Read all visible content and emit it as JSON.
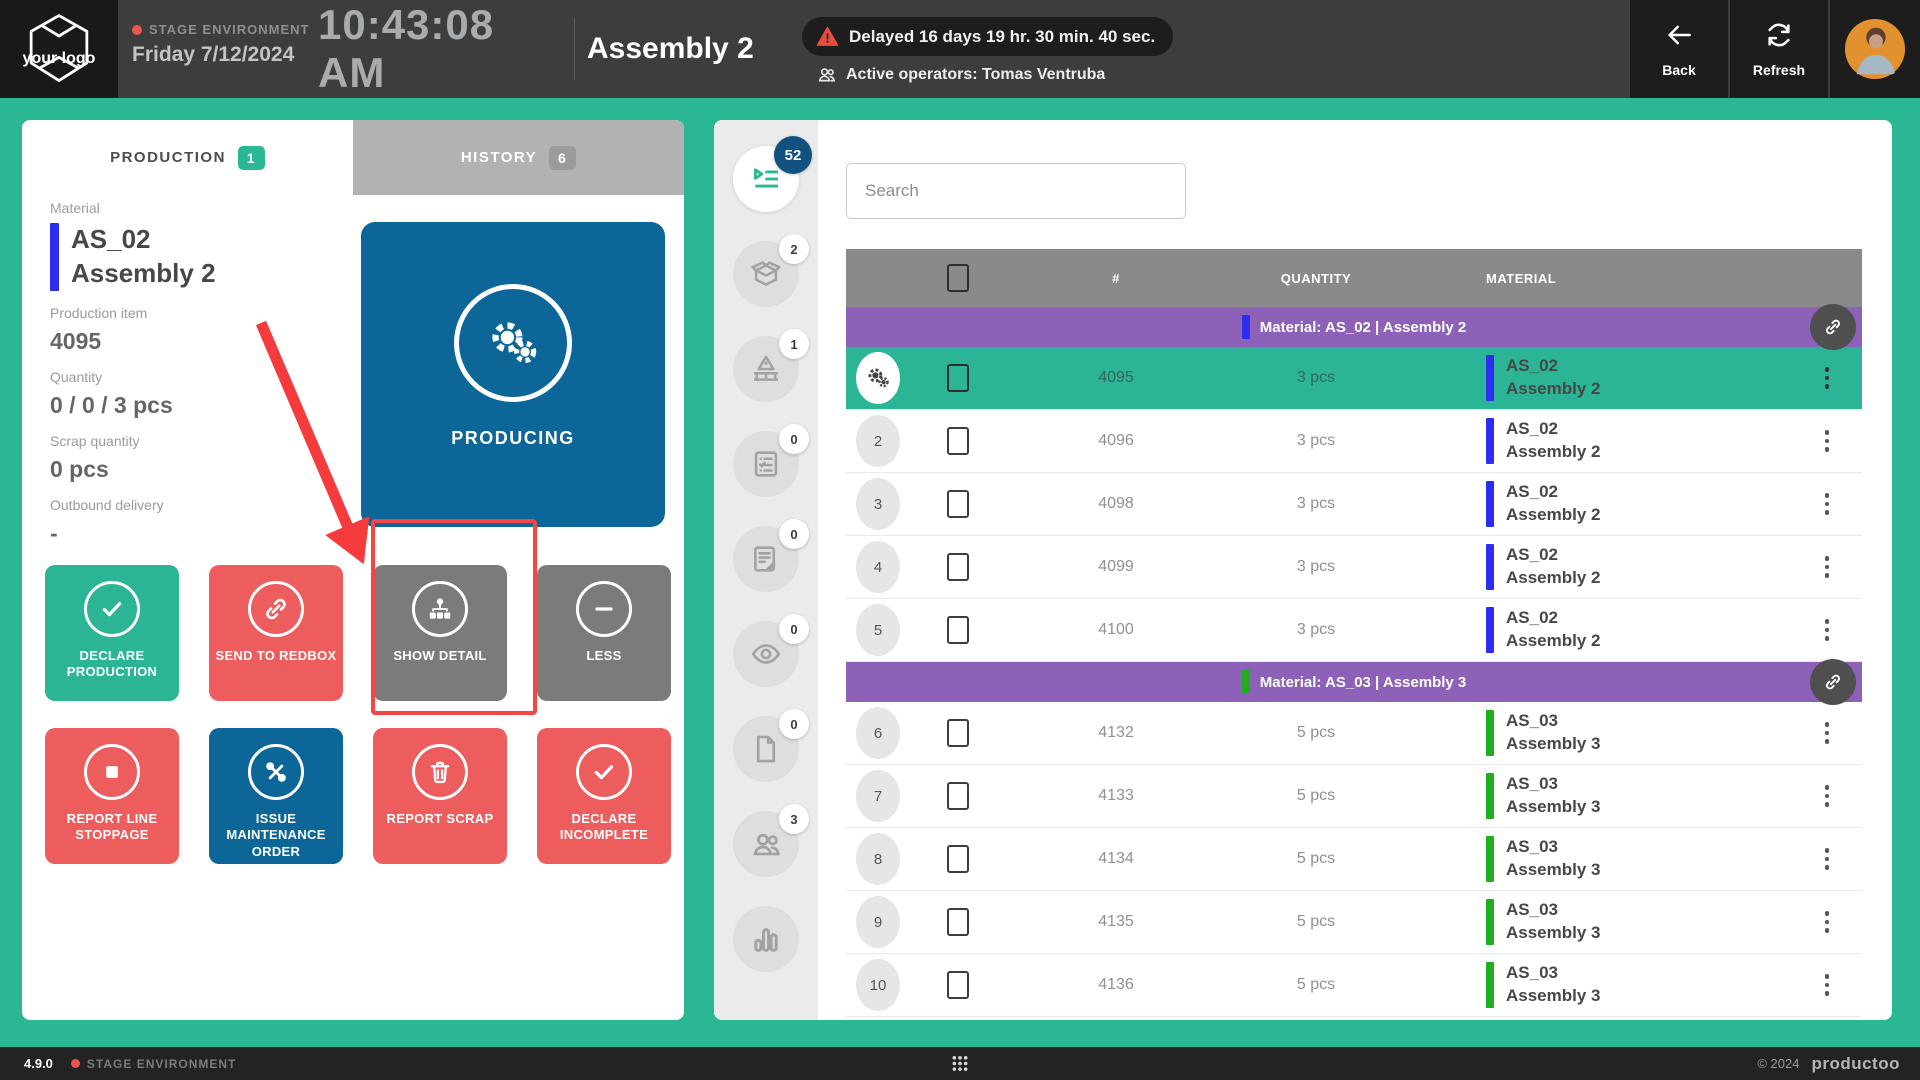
{
  "header": {
    "logo_text": "your logo",
    "environment": "STAGE ENVIRONMENT",
    "date": "Friday 7/12/2024",
    "time": "10:43:08 AM",
    "title": "Assembly 2",
    "delay_alert": "Delayed 16 days 19 hr. 30 min. 40 sec.",
    "operators": "Active operators: Tomas Ventruba",
    "back_label": "Back",
    "refresh_label": "Refresh"
  },
  "production_panel": {
    "tabs": [
      {
        "label": "PRODUCTION",
        "badge": "1",
        "active": true
      },
      {
        "label": "HISTORY",
        "badge": "6",
        "active": false
      }
    ],
    "info": {
      "material_label": "Material",
      "material_code": "AS_02",
      "material_name": "Assembly 2",
      "production_item_label": "Production item",
      "production_item_value": "4095",
      "quantity_label": "Quantity",
      "quantity_value": "0 / 0 / 3 pcs",
      "scrap_label": "Scrap quantity",
      "scrap_value": "0 pcs",
      "outbound_label": "Outbound delivery",
      "outbound_value": "-"
    },
    "status_tile": {
      "label": "PRODUCING",
      "icon": "gears"
    },
    "actions": [
      {
        "name": "declare-production-button",
        "label": "DECLARE PRODUCTION",
        "icon": "check",
        "color": "teal",
        "highlight": false
      },
      {
        "name": "send-to-redbox-button",
        "label": "SEND TO REDBOX",
        "icon": "link",
        "color": "red",
        "highlight": false
      },
      {
        "name": "show-detail-button",
        "label": "SHOW DETAIL",
        "icon": "sitemap",
        "color": "gray",
        "highlight": true
      },
      {
        "name": "less-button",
        "label": "LESS",
        "icon": "minus",
        "color": "gray",
        "highlight": false
      },
      {
        "name": "report-line-stoppage-button",
        "label": "REPORT LINE STOPPAGE",
        "icon": "stop",
        "color": "red",
        "highlight": false
      },
      {
        "name": "issue-maintenance-order-button",
        "label": "ISSUE MAINTENANCE ORDER",
        "icon": "tools",
        "color": "blue",
        "highlight": false
      },
      {
        "name": "report-scrap-button",
        "label": "REPORT SCRAP",
        "icon": "trash",
        "color": "red",
        "highlight": false
      },
      {
        "name": "declare-incomplete-button",
        "label": "DECLARE INCOMPLETE",
        "icon": "check",
        "color": "red",
        "highlight": false
      }
    ]
  },
  "nav_rail": {
    "items": [
      {
        "name": "production-queue",
        "icon": "queue",
        "badge": "52",
        "active": true
      },
      {
        "name": "packaging",
        "icon": "box",
        "badge": "2",
        "active": false
      },
      {
        "name": "line-issues",
        "icon": "line-warning",
        "badge": "1",
        "active": false
      },
      {
        "name": "checklists",
        "icon": "checklist",
        "badge": "0",
        "active": false
      },
      {
        "name": "work-instructions",
        "icon": "doc-sign",
        "badge": "0",
        "active": false
      },
      {
        "name": "inspection",
        "icon": "eye",
        "badge": "0",
        "active": false
      },
      {
        "name": "documents",
        "icon": "file",
        "badge": "0",
        "active": false
      },
      {
        "name": "operators",
        "icon": "people",
        "badge": "3",
        "active": false
      },
      {
        "name": "statistics",
        "icon": "chart",
        "badge": null,
        "active": false
      }
    ]
  },
  "orders_panel": {
    "search_placeholder": "Search",
    "table": {
      "columns": [
        "#",
        "QUANTITY",
        "MATERIAL"
      ],
      "rows": [
        {
          "type": "group",
          "label": "Material: AS_02 | Assembly 2",
          "bar": "#2d2df2"
        },
        {
          "type": "row",
          "num": "1",
          "gear": true,
          "selected": true,
          "item": "4095",
          "qty": "3 pcs",
          "code": "AS_02",
          "name": "Assembly 2",
          "bar": "#2d2df2"
        },
        {
          "type": "row",
          "num": "2",
          "gear": false,
          "selected": false,
          "item": "4096",
          "qty": "3 pcs",
          "code": "AS_02",
          "name": "Assembly 2",
          "bar": "#2d2df2"
        },
        {
          "type": "row",
          "num": "3",
          "gear": false,
          "selected": false,
          "item": "4098",
          "qty": "3 pcs",
          "code": "AS_02",
          "name": "Assembly 2",
          "bar": "#2d2df2"
        },
        {
          "type": "row",
          "num": "4",
          "gear": false,
          "selected": false,
          "item": "4099",
          "qty": "3 pcs",
          "code": "AS_02",
          "name": "Assembly 2",
          "bar": "#2d2df2"
        },
        {
          "type": "row",
          "num": "5",
          "gear": false,
          "selected": false,
          "item": "4100",
          "qty": "3 pcs",
          "code": "AS_02",
          "name": "Assembly 2",
          "bar": "#2d2df2"
        },
        {
          "type": "group",
          "label": "Material: AS_03 | Assembly 3",
          "bar": "#1fae1f"
        },
        {
          "type": "row",
          "num": "6",
          "gear": false,
          "selected": false,
          "item": "4132",
          "qty": "5 pcs",
          "code": "AS_03",
          "name": "Assembly 3",
          "bar": "#1fae1f"
        },
        {
          "type": "row",
          "num": "7",
          "gear": false,
          "selected": false,
          "item": "4133",
          "qty": "5 pcs",
          "code": "AS_03",
          "name": "Assembly 3",
          "bar": "#1fae1f"
        },
        {
          "type": "row",
          "num": "8",
          "gear": false,
          "selected": false,
          "item": "4134",
          "qty": "5 pcs",
          "code": "AS_03",
          "name": "Assembly 3",
          "bar": "#1fae1f"
        },
        {
          "type": "row",
          "num": "9",
          "gear": false,
          "selected": false,
          "item": "4135",
          "qty": "5 pcs",
          "code": "AS_03",
          "name": "Assembly 3",
          "bar": "#1fae1f"
        },
        {
          "type": "row",
          "num": "10",
          "gear": false,
          "selected": false,
          "item": "4136",
          "qty": "5 pcs",
          "code": "AS_03",
          "name": "Assembly 3",
          "bar": "#1fae1f"
        }
      ]
    }
  },
  "footer": {
    "version": "4.9.0",
    "environment": "STAGE ENVIRONMENT",
    "copyright": "© 2024",
    "brand": "productoo"
  },
  "colors": {
    "accent_teal": "#2ab794",
    "producing_blue": "#0c6697",
    "action_red": "#ee5d5d",
    "group_purple": "#8d61b7",
    "material_blue_bar": "#2d2df2",
    "material_green_bar": "#1fae1f",
    "alert_red": "#e74c3c",
    "active_badge_blue": "#11517e"
  }
}
